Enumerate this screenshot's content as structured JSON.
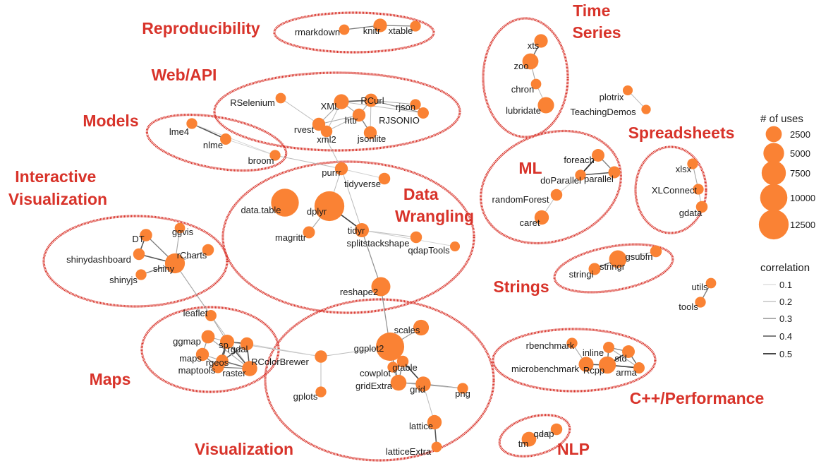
{
  "clusters": [
    {
      "name": "reproducibility",
      "label": "Reproducibility"
    },
    {
      "name": "web-api",
      "label": "Web/API"
    },
    {
      "name": "models",
      "label": "Models"
    },
    {
      "name": "interactive-visualization",
      "label": "Interactive Visualization"
    },
    {
      "name": "data-wrangling",
      "label": "Data Wrangling"
    },
    {
      "name": "time-series",
      "label": "Time Series"
    },
    {
      "name": "spreadsheets",
      "label": "Spreadsheets"
    },
    {
      "name": "ml",
      "label": "ML"
    },
    {
      "name": "strings",
      "label": "Strings"
    },
    {
      "name": "maps",
      "label": "Maps"
    },
    {
      "name": "visualization",
      "label": "Visualization"
    },
    {
      "name": "cpp-performance",
      "label": "C++/Performance"
    },
    {
      "name": "nlp",
      "label": "NLP"
    }
  ],
  "nodes": [
    {
      "id": "rmarkdown",
      "label": "rmarkdown",
      "uses": 600
    },
    {
      "id": "knitr",
      "label": "knitr",
      "uses": 1500
    },
    {
      "id": "xtable",
      "label": "xtable",
      "uses": 700
    },
    {
      "id": "RSelenium",
      "label": "RSelenium",
      "uses": 600
    },
    {
      "id": "XML",
      "label": "XML",
      "uses": 2000
    },
    {
      "id": "RCurl",
      "label": "RCurl",
      "uses": 1400
    },
    {
      "id": "rjson",
      "label": "rjson",
      "uses": 700
    },
    {
      "id": "httr",
      "label": "httr",
      "uses": 1300
    },
    {
      "id": "RJSONIO",
      "label": "RJSONIO",
      "uses": 800
    },
    {
      "id": "rvest",
      "label": "rvest",
      "uses": 1300
    },
    {
      "id": "xml2",
      "label": "xml2",
      "uses": 900
    },
    {
      "id": "jsonlite",
      "label": "jsonlite",
      "uses": 1300
    },
    {
      "id": "lme4",
      "label": "lme4",
      "uses": 700
    },
    {
      "id": "nlme",
      "label": "nlme",
      "uses": 800
    },
    {
      "id": "broom",
      "label": "broom",
      "uses": 700
    },
    {
      "id": "purrr",
      "label": "purrr",
      "uses": 1300
    },
    {
      "id": "tidyverse",
      "label": "tidyverse",
      "uses": 900
    },
    {
      "id": "data.table",
      "label": "data.table",
      "uses": 10500
    },
    {
      "id": "dplyr",
      "label": "dplyr",
      "uses": 12500
    },
    {
      "id": "magrittr",
      "label": "magrittr",
      "uses": 1000
    },
    {
      "id": "tidyr",
      "label": "tidyr",
      "uses": 1700
    },
    {
      "id": "splitstackshape",
      "label": "splitstackshape",
      "uses": 900
    },
    {
      "id": "qdapTools",
      "label": "qdapTools",
      "uses": 500
    },
    {
      "id": "reshape2",
      "label": "reshape2",
      "uses": 4000
    },
    {
      "id": "DT",
      "label": "DT",
      "uses": 1100
    },
    {
      "id": "ggvis",
      "label": "ggvis",
      "uses": 600
    },
    {
      "id": "shinydashboard",
      "label": "shinydashboard",
      "uses": 900
    },
    {
      "id": "rCharts",
      "label": "rCharts",
      "uses": 900
    },
    {
      "id": "shiny",
      "label": "shiny",
      "uses": 4500
    },
    {
      "id": "shinyjs",
      "label": "shinyjs",
      "uses": 700
    },
    {
      "id": "xts",
      "label": "xts",
      "uses": 1500
    },
    {
      "id": "zoo",
      "label": "zoo",
      "uses": 2500
    },
    {
      "id": "chron",
      "label": "chron",
      "uses": 600
    },
    {
      "id": "lubridate",
      "label": "lubridate",
      "uses": 2600
    },
    {
      "id": "plotrix",
      "label": "plotrix",
      "uses": 500
    },
    {
      "id": "TeachingDemos",
      "label": "TeachingDemos",
      "uses": 400
    },
    {
      "id": "foreach",
      "label": "foreach",
      "uses": 1200
    },
    {
      "id": "doParallel",
      "label": "doParallel",
      "uses": 700
    },
    {
      "id": "parallel",
      "label": "parallel",
      "uses": 1000
    },
    {
      "id": "randomForest",
      "label": "randomForest",
      "uses": 900
    },
    {
      "id": "caret",
      "label": "caret",
      "uses": 1800
    },
    {
      "id": "xlsx",
      "label": "xlsx",
      "uses": 700
    },
    {
      "id": "XLConnect",
      "label": "XLConnect",
      "uses": 700
    },
    {
      "id": "gdata",
      "label": "gdata",
      "uses": 900
    },
    {
      "id": "gsubfn",
      "label": "gsubfn",
      "uses": 900
    },
    {
      "id": "stringr",
      "label": "stringr",
      "uses": 3200
    },
    {
      "id": "stringi",
      "label": "stringi",
      "uses": 1000
    },
    {
      "id": "utils",
      "label": "utils",
      "uses": 600
    },
    {
      "id": "tools",
      "label": "tools",
      "uses": 700
    },
    {
      "id": "leaflet",
      "label": "leaflet",
      "uses": 800
    },
    {
      "id": "ggmap",
      "label": "ggmap",
      "uses": 1400
    },
    {
      "id": "sp",
      "label": "sp",
      "uses": 1700
    },
    {
      "id": "rgdal",
      "label": "rgdal",
      "uses": 1300
    },
    {
      "id": "maps",
      "label": "maps",
      "uses": 1300
    },
    {
      "id": "rgeos",
      "label": "rgeos",
      "uses": 1100
    },
    {
      "id": "maptools",
      "label": "maptools",
      "uses": 1000
    },
    {
      "id": "raster",
      "label": "raster",
      "uses": 2100
    },
    {
      "id": "RColorBrewer",
      "label": "RColorBrewer",
      "uses": 1100
    },
    {
      "id": "gplots",
      "label": "gplots",
      "uses": 700
    },
    {
      "id": "scales",
      "label": "scales",
      "uses": 2300
    },
    {
      "id": "ggplot2",
      "label": "ggplot2",
      "uses": 11000
    },
    {
      "id": "cowplot",
      "label": "cowplot",
      "uses": 700
    },
    {
      "id": "gtable",
      "label": "gtable",
      "uses": 900
    },
    {
      "id": "gridExtra",
      "label": "gridExtra",
      "uses": 2400
    },
    {
      "id": "grid",
      "label": "grid",
      "uses": 2100
    },
    {
      "id": "png",
      "label": "png",
      "uses": 700
    },
    {
      "id": "lattice",
      "label": "lattice",
      "uses": 1800
    },
    {
      "id": "latticeExtra",
      "label": "latticeExtra",
      "uses": 600
    },
    {
      "id": "rbenchmark",
      "label": "rbenchmark",
      "uses": 700
    },
    {
      "id": "inline",
      "label": "inline",
      "uses": 800
    },
    {
      "id": "std",
      "label": "std",
      "uses": 1200
    },
    {
      "id": "microbenchmark",
      "label": "microbenchmark",
      "uses": 2000
    },
    {
      "id": "Rcpp",
      "label": "Rcpp",
      "uses": 3000
    },
    {
      "id": "arma",
      "label": "arma",
      "uses": 800
    },
    {
      "id": "tm",
      "label": "tm",
      "uses": 1900
    },
    {
      "id": "qdap",
      "label": "qdap",
      "uses": 900
    }
  ],
  "edges": [
    {
      "source": "rmarkdown",
      "target": "knitr",
      "correlation": 0.3
    },
    {
      "source": "knitr",
      "target": "xtable",
      "correlation": 0.3
    },
    {
      "source": "RSelenium",
      "target": "rvest",
      "correlation": 0.15
    },
    {
      "source": "XML",
      "target": "RCurl",
      "correlation": 0.4
    },
    {
      "source": "XML",
      "target": "rvest",
      "correlation": 0.2
    },
    {
      "source": "XML",
      "target": "httr",
      "correlation": 0.2
    },
    {
      "source": "XML",
      "target": "xml2",
      "correlation": 0.15
    },
    {
      "source": "XML",
      "target": "RJSONIO",
      "correlation": 0.15
    },
    {
      "source": "RCurl",
      "target": "rjson",
      "correlation": 0.2
    },
    {
      "source": "RCurl",
      "target": "httr",
      "correlation": 0.2
    },
    {
      "source": "RCurl",
      "target": "RJSONIO",
      "correlation": 0.25
    },
    {
      "source": "rjson",
      "target": "RJSONIO",
      "correlation": 0.3
    },
    {
      "source": "httr",
      "target": "jsonlite",
      "correlation": 0.3
    },
    {
      "source": "httr",
      "target": "rvest",
      "correlation": 0.2
    },
    {
      "source": "httr",
      "target": "xml2",
      "correlation": 0.15
    },
    {
      "source": "RCurl",
      "target": "jsonlite",
      "correlation": 0.15
    },
    {
      "source": "rvest",
      "target": "xml2",
      "correlation": 0.4
    },
    {
      "source": "rvest",
      "target": "purrr",
      "correlation": 0.15
    },
    {
      "source": "lme4",
      "target": "nlme",
      "correlation": 0.4
    },
    {
      "source": "nlme",
      "target": "broom",
      "correlation": 0.1
    },
    {
      "source": "lme4",
      "target": "broom",
      "correlation": 0.1
    },
    {
      "source": "broom",
      "target": "purrr",
      "correlation": 0.15
    },
    {
      "source": "purrr",
      "target": "tidyverse",
      "correlation": 0.1
    },
    {
      "source": "purrr",
      "target": "dplyr",
      "correlation": 0.15
    },
    {
      "source": "purrr",
      "target": "tidyr",
      "correlation": 0.15
    },
    {
      "source": "dplyr",
      "target": "tidyr",
      "correlation": 0.45
    },
    {
      "source": "dplyr",
      "target": "magrittr",
      "correlation": 0.2
    },
    {
      "source": "tidyr",
      "target": "splitstackshape",
      "correlation": 0.15
    },
    {
      "source": "tidyr",
      "target": "qdapTools",
      "correlation": 0.1
    },
    {
      "source": "tidyr",
      "target": "reshape2",
      "correlation": 0.25
    },
    {
      "source": "reshape2",
      "target": "ggplot2",
      "correlation": 0.25
    },
    {
      "source": "DT",
      "target": "shinydashboard",
      "correlation": 0.4
    },
    {
      "source": "DT",
      "target": "shiny",
      "correlation": 0.3
    },
    {
      "source": "ggvis",
      "target": "shiny",
      "correlation": 0.2
    },
    {
      "source": "shinydashboard",
      "target": "shiny",
      "correlation": 0.4
    },
    {
      "source": "shinyjs",
      "target": "shiny",
      "correlation": 0.3
    },
    {
      "source": "rCharts",
      "target": "shiny",
      "correlation": 0.2
    },
    {
      "source": "shiny",
      "target": "leaflet",
      "correlation": 0.2
    },
    {
      "source": "xts",
      "target": "zoo",
      "correlation": 0.35
    },
    {
      "source": "zoo",
      "target": "chron",
      "correlation": 0.2
    },
    {
      "source": "chron",
      "target": "lubridate",
      "correlation": 0.15
    },
    {
      "source": "plotrix",
      "target": "TeachingDemos",
      "correlation": 0.15
    },
    {
      "source": "foreach",
      "target": "doParallel",
      "correlation": 0.5
    },
    {
      "source": "foreach",
      "target": "parallel",
      "correlation": 0.3
    },
    {
      "source": "doParallel",
      "target": "parallel",
      "correlation": 0.4
    },
    {
      "source": "doParallel",
      "target": "randomForest",
      "correlation": 0.1
    },
    {
      "source": "randomForest",
      "target": "caret",
      "correlation": 0.15
    },
    {
      "source": "xlsx",
      "target": "XLConnect",
      "correlation": 0.2
    },
    {
      "source": "XLConnect",
      "target": "gdata",
      "correlation": 0.15
    },
    {
      "source": "gsubfn",
      "target": "stringr",
      "correlation": 0.15
    },
    {
      "source": "stringr",
      "target": "stringi",
      "correlation": 0.35
    },
    {
      "source": "utils",
      "target": "tools",
      "correlation": 0.3
    },
    {
      "source": "leaflet",
      "target": "sp",
      "correlation": 0.2
    },
    {
      "source": "leaflet",
      "target": "raster",
      "correlation": 0.15
    },
    {
      "source": "ggmap",
      "target": "sp",
      "correlation": 0.2
    },
    {
      "source": "ggmap",
      "target": "maps",
      "correlation": 0.25
    },
    {
      "source": "sp",
      "target": "rgdal",
      "correlation": 0.5
    },
    {
      "source": "sp",
      "target": "rgeos",
      "correlation": 0.4
    },
    {
      "source": "sp",
      "target": "maptools",
      "correlation": 0.4
    },
    {
      "source": "sp",
      "target": "raster",
      "correlation": 0.4
    },
    {
      "source": "rgdal",
      "target": "raster",
      "correlation": 0.4
    },
    {
      "source": "rgdal",
      "target": "rgeos",
      "correlation": 0.4
    },
    {
      "source": "maps",
      "target": "maptools",
      "correlation": 0.3
    },
    {
      "source": "maps",
      "target": "rgeos",
      "correlation": 0.2
    },
    {
      "source": "ggmap",
      "target": "raster",
      "correlation": 0.2
    },
    {
      "source": "rgeos",
      "target": "raster",
      "correlation": 0.35
    },
    {
      "source": "maptools",
      "target": "raster",
      "correlation": 0.3
    },
    {
      "source": "sp",
      "target": "RColorBrewer",
      "correlation": 0.15
    },
    {
      "source": "rgdal",
      "target": "RColorBrewer",
      "correlation": 0.1
    },
    {
      "source": "RColorBrewer",
      "target": "gplots",
      "correlation": 0.15
    },
    {
      "source": "RColorBrewer",
      "target": "ggplot2",
      "correlation": 0.15
    },
    {
      "source": "ggplot2",
      "target": "scales",
      "correlation": 0.25
    },
    {
      "source": "ggplot2",
      "target": "gridExtra",
      "correlation": 0.3
    },
    {
      "source": "ggplot2",
      "target": "grid",
      "correlation": 0.25
    },
    {
      "source": "ggplot2",
      "target": "gtable",
      "correlation": 0.2
    },
    {
      "source": "ggplot2",
      "target": "cowplot",
      "correlation": 0.15
    },
    {
      "source": "gridExtra",
      "target": "grid",
      "correlation": 0.35
    },
    {
      "source": "gtable",
      "target": "grid",
      "correlation": 0.45
    },
    {
      "source": "gtable",
      "target": "gridExtra",
      "correlation": 0.3
    },
    {
      "source": "cowplot",
      "target": "gridExtra",
      "correlation": 0.2
    },
    {
      "source": "grid",
      "target": "png",
      "correlation": 0.3
    },
    {
      "source": "gridExtra",
      "target": "png",
      "correlation": 0.15
    },
    {
      "source": "grid",
      "target": "lattice",
      "correlation": 0.15
    },
    {
      "source": "lattice",
      "target": "latticeExtra",
      "correlation": 0.4
    },
    {
      "source": "rbenchmark",
      "target": "microbenchmark",
      "correlation": 0.2
    },
    {
      "source": "inline",
      "target": "Rcpp",
      "correlation": 0.35
    },
    {
      "source": "inline",
      "target": "std",
      "correlation": 0.3
    },
    {
      "source": "std",
      "target": "Rcpp",
      "correlation": 0.5
    },
    {
      "source": "std",
      "target": "arma",
      "correlation": 0.35
    },
    {
      "source": "Rcpp",
      "target": "arma",
      "correlation": 0.45
    },
    {
      "source": "Rcpp",
      "target": "microbenchmark",
      "correlation": 0.4
    },
    {
      "source": "inline",
      "target": "arma",
      "correlation": 0.2
    },
    {
      "source": "tm",
      "target": "qdap",
      "correlation": 0.2
    }
  ],
  "legend": {
    "size_title": "# of uses",
    "size_items": [
      2500,
      5000,
      7500,
      10000,
      12500
    ],
    "size_labels": [
      "2500",
      "5000",
      "7500",
      "10000",
      "12500"
    ],
    "correlation_title": "correlation",
    "correlation_items": [
      0.1,
      0.2,
      0.3,
      0.4,
      0.5
    ],
    "correlation_labels": [
      "0.1",
      "0.2",
      "0.3",
      "0.4",
      "0.5"
    ]
  },
  "colors": {
    "node": "#fa8234",
    "cluster": "#d8332a",
    "edge_low": "#cfcfcf",
    "edge_high": "#2d2d2d"
  }
}
